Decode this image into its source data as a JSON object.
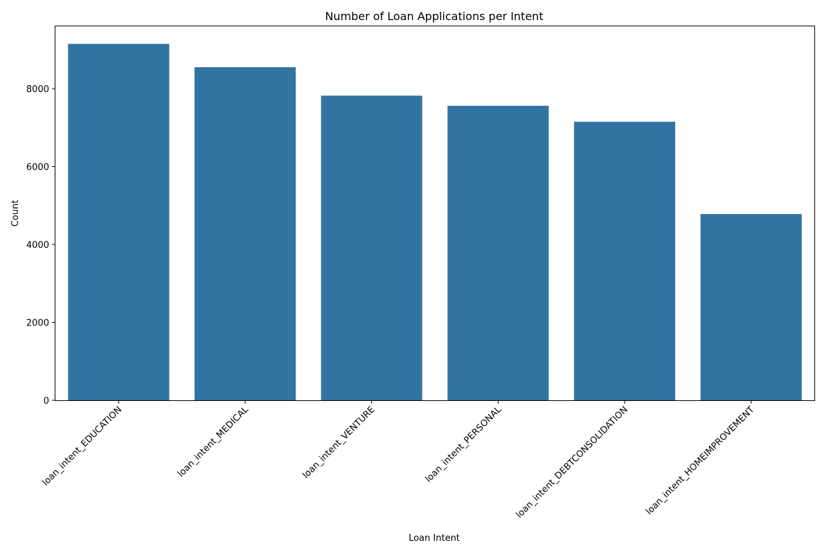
{
  "chart_data": {
    "type": "bar",
    "title": "Number of Loan Applications per Intent",
    "xlabel": "Loan Intent",
    "ylabel": "Count",
    "categories": [
      "loan_intent_EDUCATION",
      "loan_intent_MEDICAL",
      "loan_intent_VENTURE",
      "loan_intent_PERSONAL",
      "loan_intent_DEBTCONSOLIDATION",
      "loan_intent_HOMEIMPROVEMENT"
    ],
    "values": [
      9150,
      8550,
      7820,
      7560,
      7150,
      4780
    ],
    "ylim": [
      0,
      9600
    ],
    "yticks": [
      0,
      2000,
      4000,
      6000,
      8000
    ],
    "grid": false,
    "bar_color": "#3274a1"
  }
}
